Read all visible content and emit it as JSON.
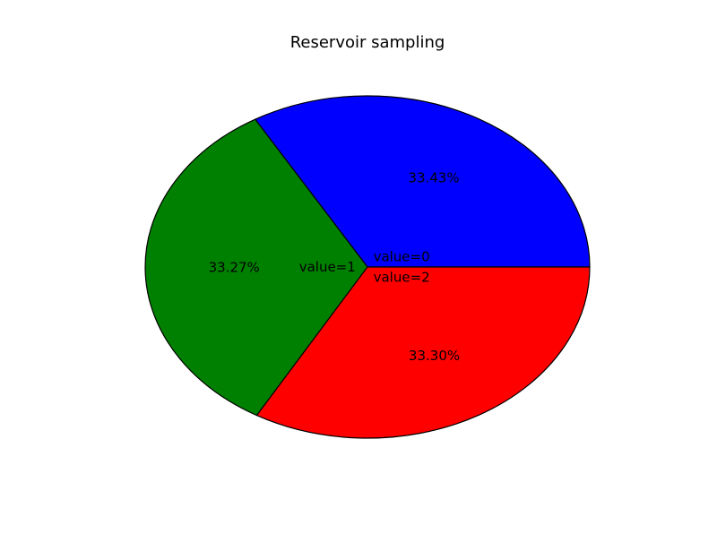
{
  "chart_data": {
    "type": "pie",
    "title": "Reservoir sampling",
    "labels": [
      "value=0",
      "value=1",
      "value=2"
    ],
    "values": [
      33.43,
      33.27,
      33.3
    ],
    "percent_labels": [
      "33.43%",
      "33.27%",
      "33.30%"
    ],
    "colors": [
      "#0000ff",
      "#008000",
      "#ff0000"
    ],
    "start_angle_deg": 0,
    "direction": "counterclockwise",
    "edge_color": "#000000",
    "legend": "none",
    "grid": false
  }
}
